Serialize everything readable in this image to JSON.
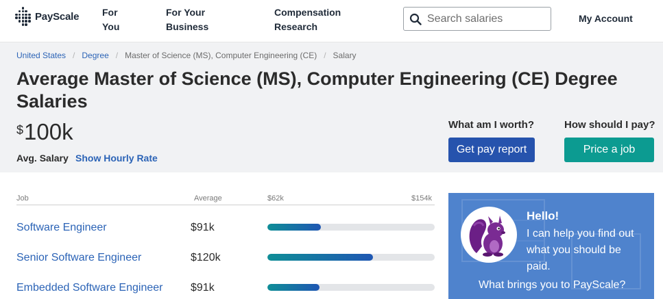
{
  "header": {
    "logo_text": "PayScale",
    "nav": [
      {
        "line1": "For",
        "line2": "You"
      },
      {
        "line1": "For Your",
        "line2": "Business"
      },
      {
        "line1": "Compensation",
        "line2": "Research"
      }
    ],
    "search_placeholder": "Search salaries",
    "account_label": "My Account"
  },
  "breadcrumb": {
    "items": [
      "United States",
      "Degree",
      "Master of Science (MS), Computer Engineering (CE)",
      "Salary"
    ]
  },
  "page": {
    "title": "Average Master of Science (MS), Computer Engineering (CE) Degree Salaries",
    "currency_symbol": "$",
    "avg_salary": "100k",
    "avg_label": "Avg. Salary",
    "hourly_link": "Show Hourly Rate"
  },
  "cta": {
    "worth_question": "What am I worth?",
    "worth_button": "Get pay report",
    "pay_question": "How should I pay?",
    "pay_button": "Price a job"
  },
  "table": {
    "headers": {
      "job": "Job",
      "average": "Average",
      "min": "$62k",
      "max": "$154k"
    },
    "rows": [
      {
        "job": "Software Engineer",
        "average": "$91k",
        "bar_fraction": 0.32
      },
      {
        "job": "Senior Software Engineer",
        "average": "$120k",
        "bar_fraction": 0.63
      },
      {
        "job": "Embedded Software Engineer",
        "average": "$91k",
        "bar_fraction": 0.31
      }
    ]
  },
  "chat": {
    "hello": "Hello!",
    "message": "I can help you find out what you should be paid.",
    "question": "What brings you to PayScale?"
  },
  "colors": {
    "link_blue": "#2b63b6",
    "primary_button": "#2653ad",
    "teal_button": "#0c9b91",
    "chat_bg": "#4f83cd",
    "hero_bg": "#f1f2f4"
  },
  "icons": {
    "search": "search-icon",
    "mascot": "squirrel-icon"
  }
}
